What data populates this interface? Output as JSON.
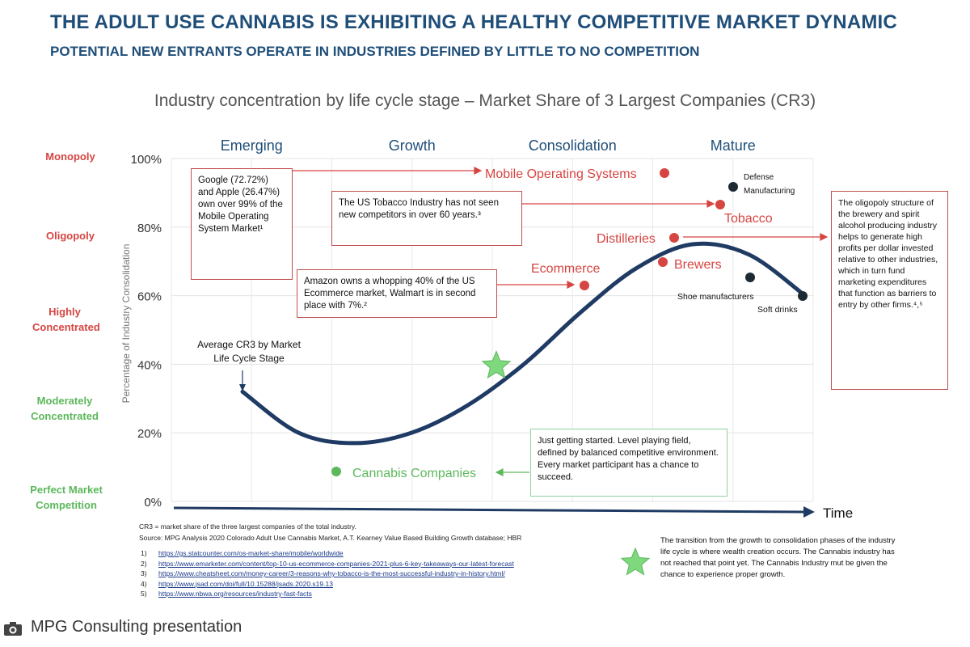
{
  "header": {
    "title": "THE ADULT USE CANNABIS IS EXHIBITING A HEALTHY COMPETITIVE MARKET DYNAMIC",
    "subtitle": "POTENTIAL NEW ENTRANTS OPERATE IN INDUSTRIES DEFINED BY LITTLE TO NO COMPETITION"
  },
  "concentration_levels": [
    "Monopoly",
    "Oligopoly",
    "Highly Concentrated",
    "Moderately Concentrated",
    "Perfect Market Competition"
  ],
  "colors": {
    "red": "#d64541",
    "green": "#5cb85c",
    "navy": "#1f3b63",
    "star": "#7ed87e",
    "dark_point": "#1c2a33"
  },
  "chart_data": {
    "type": "scatter",
    "title": "Industry concentration by life cycle stage – Market Share of 3 Largest Companies (CR3)",
    "ylabel": "Percentage of Industry Consolidation",
    "xlabel": "Time",
    "ylim": [
      0,
      100
    ],
    "y_ticks": [
      "0%",
      "20%",
      "40%",
      "60%",
      "80%",
      "100%"
    ],
    "stages": [
      "Emerging",
      "Growth",
      "Consolidation",
      "Mature"
    ],
    "curve": {
      "name": "Average CR3 by Market Life Cycle Stage",
      "x": [
        0.0,
        0.1,
        0.2,
        0.3,
        0.4,
        0.5,
        0.6,
        0.7,
        0.8,
        0.9,
        1.0
      ],
      "y": [
        32,
        20,
        17,
        20,
        28,
        40,
        55,
        68,
        75,
        72,
        60
      ]
    },
    "points": [
      {
        "label": "Mobile Operating Systems",
        "y": 95,
        "color": "red"
      },
      {
        "label": "Defense Manufacturing",
        "y": 92,
        "color": "dark"
      },
      {
        "label": "Tobacco",
        "y": 87,
        "color": "red"
      },
      {
        "label": "Distilleries",
        "y": 77,
        "color": "red"
      },
      {
        "label": "Brewers",
        "y": 70,
        "color": "red"
      },
      {
        "label": "Ecommerce",
        "y": 63,
        "color": "red"
      },
      {
        "label": "Shoe manufacturers",
        "y": 65,
        "color": "dark"
      },
      {
        "label": "Soft drinks",
        "y": 60,
        "color": "dark"
      },
      {
        "label": "Cannabis Companies",
        "y": 8,
        "color": "green"
      }
    ],
    "marker": {
      "label": "transition",
      "y": 40
    }
  },
  "notes": {
    "apple_google": "Google (72.72%) and Apple (26.47%) own over 99% of the Mobile Operating System Market¹",
    "tobacco": "The US Tobacco Industry has not seen new competitors in over 60 years.³",
    "amazon": "Amazon owns a whopping 40% of the US Ecommerce market, Walmart is in second place with 7%.²",
    "oligopoly": "The oligopoly structure of the brewery and spirit alcohol producing industry helps to generate high profits per dollar invested relative to other industries, which in turn fund marketing expenditures that function as barriers to entry by other firms.⁴,⁵",
    "getting_started": "Just getting started. Level playing field, defined by balanced competitive environment. Every market participant has a chance to succeed.",
    "transition": "The transition from the growth to consolidation phases of the industry life cycle is where wealth creation occurs. The Cannabis industry has not reached that point yet. The Cannabis Industry mut be given the chance to experience proper growth."
  },
  "footnotes": {
    "cr3": "CR3 = market share of the three largest companies of the total industry.",
    "source": "Source: MPG Analysis 2020 Colorado Adult Use Cannabis Market, A.T. Kearney Value Based Building Growth database; HBR",
    "refs": [
      {
        "num": "1)",
        "url": "https://gs.statcounter.com/os-market-share/mobile/worldwide"
      },
      {
        "num": "2)",
        "url": "https://www.emarketer.com/content/top-10-us-ecommerce-companies-2021-plus-6-key-takeaways-our-latest-forecast"
      },
      {
        "num": "3)",
        "url": "https://www.cheatsheet.com/money-career/3-reasons-why-tobacco-is-the-most-successful-industry-in-history.html/"
      },
      {
        "num": "4)",
        "url": "https://www.jsad.com/doi/full/10.15288/jsads.2020.s19.13"
      },
      {
        "num": "5)",
        "url": "https://www.nbwa.org/resources/industry-fast-facts"
      }
    ]
  },
  "caption": "MPG Consulting presentation"
}
